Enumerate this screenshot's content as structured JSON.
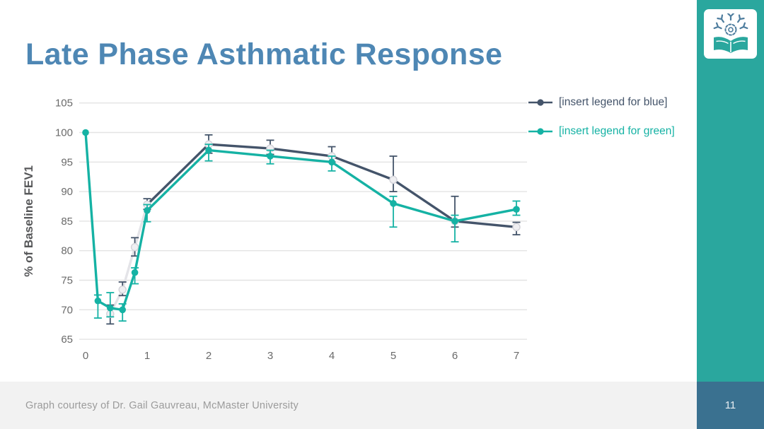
{
  "slide": {
    "title": "Late Phase Asthmatic Response",
    "footer_note": "Graph courtesy of Dr. Gail Gauvreau, McMaster University",
    "page_number": "11"
  },
  "colors": {
    "title_blue": "#4E87B4",
    "accent_teal": "#2AA79E",
    "page_box_blue": "#3A7190",
    "page_number_text": "#E8EEF2",
    "series_blue": "#44546A",
    "series_green": "#15B2A4",
    "early_segment_gray": "#E4E4E8",
    "marker_fill_gray": "#EFEFF2",
    "marker_stroke_gray": "#D4D4DA",
    "grid_line": "#E3E3E3",
    "footer_band": "#F2F2F2",
    "footer_text": "#9B9B9B",
    "tick_text": "#6A6A6A",
    "axis_title_text": "#57585A"
  },
  "legend": {
    "items": [
      {
        "label": "[insert legend for blue]",
        "series": "blue"
      },
      {
        "label": "[insert legend for green]",
        "series": "green"
      }
    ]
  },
  "chart_data": {
    "type": "line",
    "title": "",
    "xlabel": "",
    "ylabel": "% of Baseline FEV1",
    "xlim": [
      0,
      7
    ],
    "ylim": [
      65,
      105
    ],
    "x_ticks": [
      0,
      1,
      2,
      3,
      4,
      5,
      6,
      7
    ],
    "y_ticks": [
      65,
      70,
      75,
      80,
      85,
      90,
      95,
      100,
      105
    ],
    "grid": "horizontal",
    "legend_position": "top-right",
    "error_bars": true,
    "points_format": "[x, y, err_low, err_high]",
    "series": [
      {
        "name": "[insert legend for blue]",
        "color_key": "series_blue",
        "marker": "circle-light-gray",
        "early_gray_segment_through_x": 1,
        "points": [
          [
            0.4,
            69.3,
            1.7,
            1.5
          ],
          [
            0.6,
            73.4,
            1.0,
            1.3
          ],
          [
            0.8,
            80.6,
            1.5,
            1.6
          ],
          [
            1,
            87.8,
            0.8,
            1.0
          ],
          [
            2,
            98,
            1.5,
            1.6
          ],
          [
            3,
            97.3,
            1.0,
            1.4
          ],
          [
            4,
            96,
            1.0,
            1.6
          ],
          [
            5,
            92,
            2.0,
            4.0
          ],
          [
            6,
            85,
            1.0,
            4.2
          ],
          [
            7,
            84,
            1.3,
            0.8
          ]
        ]
      },
      {
        "name": "[insert legend for green]",
        "color_key": "series_green",
        "marker": "circle-solid",
        "points": [
          [
            0,
            100,
            0,
            0
          ],
          [
            0.2,
            71.5,
            2.9,
            1.0
          ],
          [
            0.4,
            70.3,
            1.5,
            2.6
          ],
          [
            0.6,
            70,
            1.9,
            1.0
          ],
          [
            0.8,
            76.3,
            1.9,
            0.8
          ],
          [
            1,
            86.8,
            1.9,
            1.0
          ],
          [
            2,
            97,
            1.8,
            1.0
          ],
          [
            3,
            96,
            1.3,
            1.0
          ],
          [
            4,
            95,
            1.5,
            1.0
          ],
          [
            5,
            88,
            4.0,
            1.2
          ],
          [
            6,
            85,
            3.5,
            1.0
          ],
          [
            7,
            87,
            1.0,
            1.4
          ]
        ]
      }
    ]
  }
}
